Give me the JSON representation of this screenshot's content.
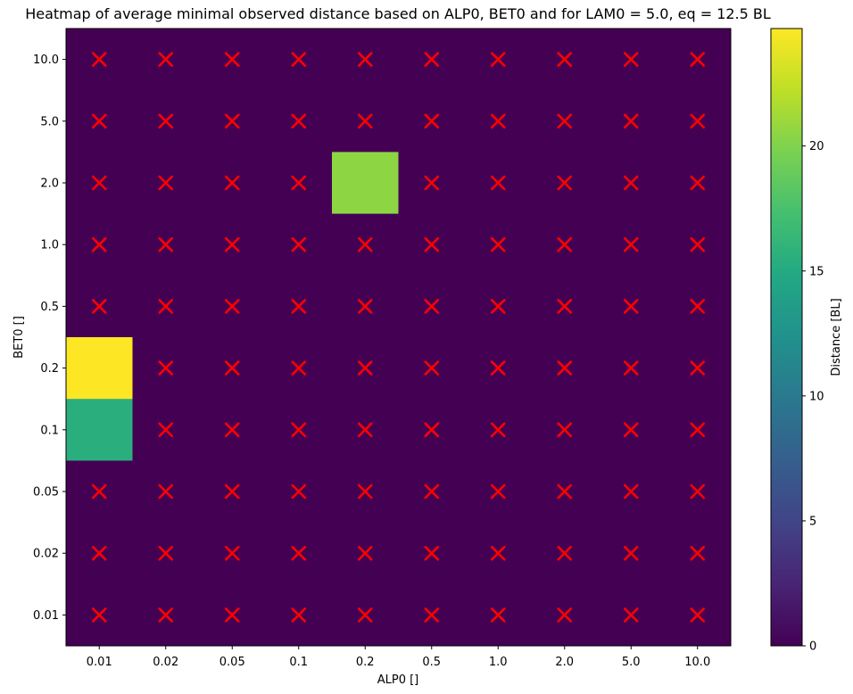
{
  "chart_data": {
    "type": "heatmap",
    "title": "Heatmap of average minimal observed distance based on ALP0, BET0 and for LAM0 =  5.0, eq = 12.5 BL",
    "xlabel": "ALP0 []",
    "ylabel": "BET0 []",
    "x_categories": [
      "0.01",
      "0.02",
      "0.05",
      "0.1",
      "0.2",
      "0.5",
      "1.0",
      "2.0",
      "5.0",
      "10.0"
    ],
    "y_categories_top_to_bottom": [
      "10.0",
      "5.0",
      "2.0",
      "1.0",
      "0.5",
      "0.2",
      "0.1",
      "0.05",
      "0.02",
      "0.01"
    ],
    "values": [
      [
        0,
        0,
        0,
        0,
        0,
        0,
        0,
        0,
        0,
        0
      ],
      [
        0,
        0,
        0,
        0,
        0,
        0,
        0,
        0,
        0,
        0
      ],
      [
        0,
        0,
        0,
        0,
        20.5,
        0,
        0,
        0,
        0,
        0
      ],
      [
        0,
        0,
        0,
        0,
        0,
        0,
        0,
        0,
        0,
        0
      ],
      [
        0,
        0,
        0,
        0,
        0,
        0,
        0,
        0,
        0,
        0
      ],
      [
        24.7,
        0,
        0,
        0,
        0,
        0,
        0,
        0,
        0,
        0
      ],
      [
        15.5,
        0,
        0,
        0,
        0,
        0,
        0,
        0,
        0,
        0
      ],
      [
        0,
        0,
        0,
        0,
        0,
        0,
        0,
        0,
        0,
        0
      ],
      [
        0,
        0,
        0,
        0,
        0,
        0,
        0,
        0,
        0,
        0
      ],
      [
        0,
        0,
        0,
        0,
        0,
        0,
        0,
        0,
        0,
        0
      ]
    ],
    "markers": {
      "symbol": "×",
      "color": "#ff0000",
      "shown_on_zero_cells": true
    },
    "colorbar": {
      "label": "Distance [BL]",
      "colormap": "viridis",
      "vmin": 0,
      "vmax": 24.7,
      "ticks": [
        0,
        5,
        10,
        15,
        20
      ]
    }
  }
}
